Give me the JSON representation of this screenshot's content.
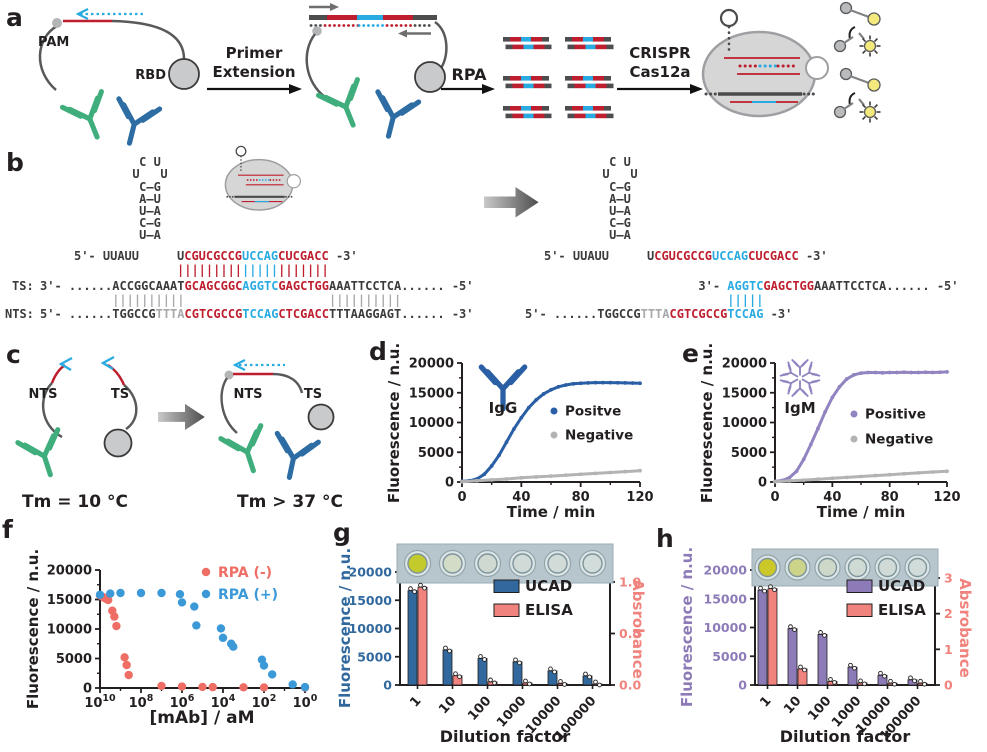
{
  "colors": {
    "seq": {
      "dark": "#3b3b3c",
      "red": "#be1e2d",
      "blue": "#29abe2",
      "gray": "#a7a9ac"
    },
    "green_ab": "#3fae7c",
    "blue_ab": "#2e6da4",
    "strand_gray": "#58595b",
    "igg_blue": "#2a5fa5",
    "igm_purple": "#9184c0",
    "neg_gray": "#b1b3b5",
    "rpa_neg": "#ee6d64",
    "rpa_pos": "#3b99d8",
    "ucad_blue": "#31689d",
    "ucad_purple": "#8d7bb8",
    "elisa_pink": "#f0837d",
    "axis": "#231f20",
    "reporter_yellow": "#f3e97c",
    "reporter_gray": "#b9bbbd"
  },
  "panel_labels": {
    "a": "a",
    "b": "b",
    "c": "c",
    "d": "d",
    "e": "e",
    "f": "f",
    "g": "g",
    "h": "h"
  },
  "a": {
    "pam": "PAM",
    "rbd": "RBD",
    "step1_line1": "Primer",
    "step1_line2": "Extension",
    "step2": "RPA",
    "step3_line1": "CRISPR",
    "step3_line2": "Cas12a"
  },
  "b": {
    "hairpin": {
      "loop_top": "C U",
      "loop_left": "U",
      "loop_right": "U",
      "pairs": [
        "C—G",
        "A—U",
        "U—A",
        "C—G",
        "U—A"
      ]
    },
    "crRNA_prefix": "5'- UUAUU",
    "crRNA": [
      {
        "t": "U",
        "c": "dark"
      },
      {
        "t": "CGUCGCCG",
        "c": "red"
      },
      {
        "t": "UCCAG",
        "c": "blue"
      },
      {
        "t": "CUCGACC",
        "c": "red"
      },
      {
        "t": " -3'",
        "c": "dark"
      }
    ],
    "pair_crRNA": [
      {
        "t": "|||||||||",
        "c": "red"
      },
      {
        "t": "|||||",
        "c": "blue"
      },
      {
        "t": "|||||||",
        "c": "red"
      }
    ],
    "ts_label": "TS:",
    "nts_label": "NTS:",
    "left_ts": [
      {
        "t": "3'- ......ACCGGCAAAT",
        "c": "dark"
      },
      {
        "t": "GCAGCGGC",
        "c": "red"
      },
      {
        "t": "AGGTC",
        "c": "blue"
      },
      {
        "t": "GAGCTGG",
        "c": "red"
      },
      {
        "t": "AAATTCCTCA...... -5'",
        "c": "dark"
      }
    ],
    "pair_flank": "||||||||||",
    "left_nts": [
      {
        "t": "5'- ......TGGCCG",
        "c": "dark"
      },
      {
        "t": "TTTA",
        "c": "gray"
      },
      {
        "t": "CGTCGCCG",
        "c": "red"
      },
      {
        "t": "TCCAG",
        "c": "blue"
      },
      {
        "t": "CTCGACC",
        "c": "red"
      },
      {
        "t": "TTTAAGGAGT...... -3'",
        "c": "dark"
      }
    ],
    "right_ts": [
      {
        "t": "3'- ",
        "c": "dark"
      },
      {
        "t": "AGGTC",
        "c": "blue"
      },
      {
        "t": "GAGCTGG",
        "c": "red"
      },
      {
        "t": "AAATTCCTCA...... -5'",
        "c": "dark"
      }
    ],
    "pair_seed": "|||||",
    "right_nts": [
      {
        "t": "5'- ......TGGCCG",
        "c": "dark"
      },
      {
        "t": "TTTA",
        "c": "gray"
      },
      {
        "t": "CGTCGCCG",
        "c": "red"
      },
      {
        "t": "TCCAG",
        "c": "blue"
      },
      {
        "t": " -3'",
        "c": "dark"
      }
    ]
  },
  "c": {
    "nts": "NTS",
    "ts": "TS",
    "tm_low": "Tm = 10 °C",
    "tm_high": "Tm > 37 °C"
  },
  "chart_data": [
    {
      "panel": "d",
      "type": "line",
      "xlabel": "Time / min",
      "ylabel": "Fluorescence / n.u.",
      "annotation": "IgG",
      "xlim": [
        0,
        120
      ],
      "ylim": [
        0,
        20000
      ],
      "xticks": [
        0,
        40,
        80,
        120
      ],
      "xminor": [
        20,
        60,
        100
      ],
      "yticks": [
        0,
        5000,
        10000,
        15000,
        20000
      ],
      "yminor": [
        2500,
        7500,
        12500,
        17500
      ],
      "legend_position": "right-middle",
      "series": [
        {
          "name": "Positve",
          "color_key": "igg_blue",
          "draw_line": true,
          "points": [
            [
              0,
              100
            ],
            [
              5,
              200
            ],
            [
              10,
              500
            ],
            [
              15,
              1300
            ],
            [
              20,
              2700
            ],
            [
              25,
              4500
            ],
            [
              30,
              6700
            ],
            [
              35,
              8900
            ],
            [
              40,
              10800
            ],
            [
              45,
              12500
            ],
            [
              50,
              13800
            ],
            [
              55,
              14800
            ],
            [
              60,
              15500
            ],
            [
              65,
              16000
            ],
            [
              70,
              16300
            ],
            [
              75,
              16500
            ],
            [
              80,
              16600
            ],
            [
              85,
              16650
            ],
            [
              90,
              16700
            ],
            [
              95,
              16700
            ],
            [
              100,
              16700
            ],
            [
              105,
              16680
            ],
            [
              110,
              16650
            ],
            [
              115,
              16630
            ],
            [
              120,
              16600
            ]
          ]
        },
        {
          "name": "Negative",
          "color_key": "neg_gray",
          "draw_line": true,
          "points": [
            [
              0,
              50
            ],
            [
              10,
              200
            ],
            [
              20,
              350
            ],
            [
              30,
              500
            ],
            [
              40,
              700
            ],
            [
              50,
              850
            ],
            [
              60,
              1000
            ],
            [
              70,
              1150
            ],
            [
              80,
              1300
            ],
            [
              90,
              1450
            ],
            [
              100,
              1600
            ],
            [
              110,
              1750
            ],
            [
              120,
              1900
            ]
          ]
        }
      ]
    },
    {
      "panel": "e",
      "type": "line",
      "xlabel": "Time / min",
      "ylabel": "Fluorescence / n.u.",
      "annotation": "IgM",
      "xlim": [
        0,
        120
      ],
      "ylim": [
        0,
        20000
      ],
      "xticks": [
        0,
        40,
        80,
        120
      ],
      "xminor": [
        20,
        60,
        100
      ],
      "yticks": [
        0,
        5000,
        10000,
        15000,
        20000
      ],
      "yminor": [
        2500,
        7500,
        12500,
        17500
      ],
      "legend_position": "right-middle",
      "series": [
        {
          "name": "Positive",
          "color_key": "igm_purple",
          "draw_line": true,
          "points": [
            [
              0,
              100
            ],
            [
              5,
              250
            ],
            [
              10,
              700
            ],
            [
              15,
              1800
            ],
            [
              20,
              3800
            ],
            [
              25,
              6300
            ],
            [
              30,
              9000
            ],
            [
              35,
              11800
            ],
            [
              40,
              14200
            ],
            [
              45,
              16000
            ],
            [
              50,
              17300
            ],
            [
              55,
              18000
            ],
            [
              60,
              18300
            ],
            [
              65,
              18400
            ],
            [
              70,
              18400
            ],
            [
              75,
              18350
            ],
            [
              80,
              18400
            ],
            [
              85,
              18400
            ],
            [
              90,
              18450
            ],
            [
              95,
              18400
            ],
            [
              100,
              18400
            ],
            [
              105,
              18450
            ],
            [
              110,
              18400
            ],
            [
              115,
              18450
            ],
            [
              120,
              18500
            ]
          ]
        },
        {
          "name": "Negative",
          "color_key": "neg_gray",
          "draw_line": true,
          "points": [
            [
              0,
              50
            ],
            [
              10,
              180
            ],
            [
              20,
              320
            ],
            [
              30,
              470
            ],
            [
              40,
              620
            ],
            [
              50,
              780
            ],
            [
              60,
              930
            ],
            [
              70,
              1080
            ],
            [
              80,
              1230
            ],
            [
              90,
              1380
            ],
            [
              100,
              1530
            ],
            [
              110,
              1680
            ],
            [
              120,
              1800
            ]
          ]
        }
      ]
    },
    {
      "panel": "f",
      "type": "scatter_log_reversed_x",
      "xlabel": "[mAb] / aM",
      "ylabel": "Fluorescence / n.u.",
      "x_exponent_ticks": [
        10,
        8,
        6,
        4,
        2,
        0
      ],
      "x_exponent_minor": [
        9,
        7,
        5,
        3,
        1
      ],
      "x_exp_max": 10,
      "x_exp_min": 0,
      "ylim": [
        0,
        20000
      ],
      "yticks": [
        0,
        5000,
        10000,
        15000,
        20000
      ],
      "yminor": [
        2500,
        7500,
        12500,
        17500
      ],
      "legend_text_colored": true,
      "series": [
        {
          "name": "RPA (-)",
          "color_key": "rpa_neg",
          "r": 4.2,
          "points_log": [
            [
              10,
              15700
            ],
            [
              9.9,
              15500
            ],
            [
              9.8,
              15300
            ],
            [
              9.7,
              15100
            ],
            [
              9.6,
              14900
            ],
            [
              9.4,
              13100
            ],
            [
              9.3,
              12100
            ],
            [
              9.2,
              10500
            ],
            [
              8.8,
              5200
            ],
            [
              8.7,
              3900
            ],
            [
              8.6,
              2200
            ],
            [
              7,
              350
            ],
            [
              6,
              250
            ],
            [
              5,
              180
            ],
            [
              4.5,
              150
            ],
            [
              3,
              120
            ],
            [
              2,
              100
            ],
            [
              0,
              80
            ]
          ]
        },
        {
          "name": "RPA (+)",
          "color_key": "rpa_pos",
          "r": 4.2,
          "points_log": [
            [
              10,
              15800
            ],
            [
              9.5,
              16000
            ],
            [
              9,
              16100
            ],
            [
              8,
              16100
            ],
            [
              7,
              16100
            ],
            [
              6.1,
              15900
            ],
            [
              6,
              14500
            ],
            [
              5.4,
              13800
            ],
            [
              5.3,
              10600
            ],
            [
              4.1,
              10100
            ],
            [
              4,
              8500
            ],
            [
              3.6,
              7500
            ],
            [
              3.5,
              7000
            ],
            [
              2.1,
              4800
            ],
            [
              2,
              3800
            ],
            [
              1.6,
              2300
            ],
            [
              0.6,
              600
            ],
            [
              0,
              150
            ]
          ]
        }
      ]
    },
    {
      "panel": "g",
      "type": "dual_bar",
      "xlabel": "Dilution factor",
      "ylabel_left": "Fluorescence / n.u.",
      "ylabel_right": "Absrobance",
      "left_color_key": "ucad_blue",
      "right_color_key": "elisa_pink",
      "categories": [
        "1",
        "10",
        "100",
        "1000",
        "10000",
        "100000"
      ],
      "left_ylim": [
        0,
        20000
      ],
      "left_ticks": [
        "0",
        "5000",
        "10000",
        "15000",
        "20000"
      ],
      "right_ylim": [
        0,
        1.0
      ],
      "right_ticks": [
        "0.0",
        "0.5",
        "1.0"
      ],
      "series": [
        {
          "name": "UCAD",
          "axis": "left",
          "color_key": "ucad_blue",
          "values": [
            16700,
            6200,
            4700,
            4100,
            2500,
            1600
          ]
        },
        {
          "name": "ELISA",
          "axis": "right",
          "color_key": "elisa_pink",
          "values": [
            0.95,
            0.09,
            0.03,
            0.02,
            0.015,
            0.01
          ]
        }
      ],
      "wells_bg": "#b7c6cd",
      "wells": [
        "#c3ca2b",
        "#d2dcc6",
        "#cfd9d2",
        "#d0dad6",
        "#d1dbd8",
        "#d2dcda"
      ]
    },
    {
      "panel": "h",
      "type": "dual_bar",
      "xlabel": "Dilution factor",
      "ylabel_left": "Fluorescence / n.u.",
      "ylabel_right": "Absrobance",
      "left_color_key": "ucad_purple",
      "right_color_key": "elisa_pink",
      "categories": [
        "1",
        "10",
        "100",
        "1000",
        "10000",
        "100000"
      ],
      "left_ylim": [
        0,
        20000
      ],
      "left_ticks": [
        "0",
        "5000",
        "10000",
        "15000",
        "20000"
      ],
      "right_ylim": [
        0,
        3
      ],
      "right_ticks": [
        "0",
        "1",
        "2",
        "3"
      ],
      "series": [
        {
          "name": "UCAD",
          "axis": "left",
          "color_key": "ucad_purple",
          "values": [
            16500,
            9800,
            8800,
            3100,
            1700,
            900
          ]
        },
        {
          "name": "ELISA",
          "axis": "right",
          "color_key": "elisa_pink",
          "values": [
            2.7,
            0.45,
            0.1,
            0.06,
            0.05,
            0.05
          ]
        }
      ],
      "wells_bg": "#b7c6cd",
      "wells": [
        "#ccc829",
        "#ccd489",
        "#cdd8c9",
        "#cfdad4",
        "#d0dbd7",
        "#d1dcda"
      ]
    }
  ]
}
